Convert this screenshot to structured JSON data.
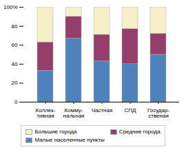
{
  "chart_data": {
    "type": "bar",
    "stacked": true,
    "categories": [
      "Коллек-\nтивная",
      "Комму-\nнальная",
      "Частная",
      "СПД",
      "Государ-\nственая"
    ],
    "series": [
      {
        "name": "Малые населенные пункты",
        "color": "#4f81bd",
        "values": [
          33,
          67,
          43,
          40,
          50
        ]
      },
      {
        "name": "Средние города",
        "color": "#953d6b",
        "values": [
          30,
          23,
          28,
          37,
          22
        ]
      },
      {
        "name": "Большие города",
        "color": "#f5f0c8",
        "values": [
          37,
          10,
          29,
          23,
          28
        ]
      }
    ],
    "ylim": [
      0,
      100
    ],
    "yticks": [
      0,
      20,
      40,
      60,
      80,
      {
        "value": 100,
        "label": "100%"
      }
    ],
    "grid": false,
    "legend": "bottom"
  }
}
